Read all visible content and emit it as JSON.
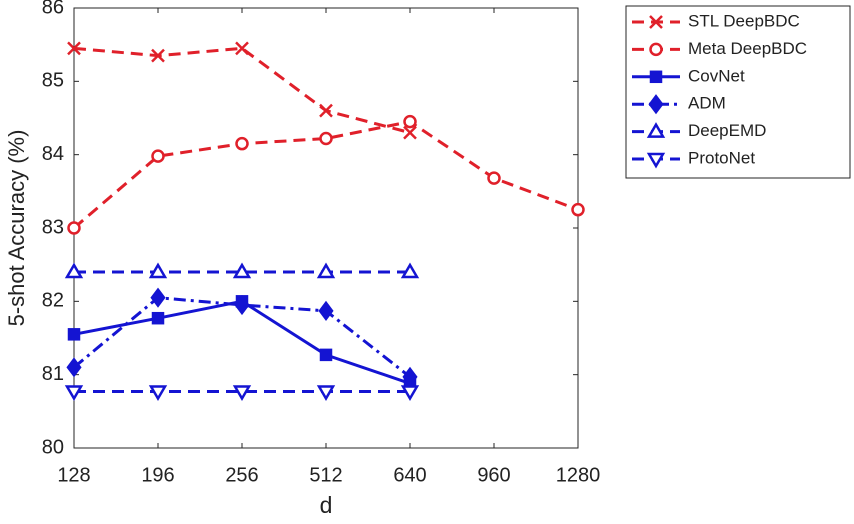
{
  "chart_data": {
    "type": "line",
    "xlabel": "d",
    "ylabel": "5-shot Accuracy (%)",
    "categories": [
      "128",
      "196",
      "256",
      "512",
      "640",
      "960",
      "1280"
    ],
    "ylim": [
      80,
      86
    ],
    "yticks": [
      80,
      81,
      82,
      83,
      84,
      85,
      86
    ],
    "legend": "outside-right",
    "series": [
      {
        "name": "STL DeepBDC",
        "color": "#e0202a",
        "line_style": "dashed",
        "marker": "x",
        "values": [
          85.45,
          85.35,
          85.45,
          84.6,
          84.3,
          null,
          null
        ]
      },
      {
        "name": "Meta DeepBDC",
        "color": "#e0202a",
        "line_style": "dashed",
        "marker": "circle",
        "values": [
          83.0,
          83.98,
          84.15,
          84.22,
          84.45,
          83.68,
          83.25
        ]
      },
      {
        "name": "CovNet",
        "color": "#1414d2",
        "line_style": "solid",
        "marker": "square",
        "values": [
          81.55,
          81.77,
          82.0,
          81.27,
          80.88,
          null,
          null
        ]
      },
      {
        "name": "ADM",
        "color": "#1414d2",
        "line_style": "dash-dot",
        "marker": "diamond",
        "values": [
          81.1,
          82.05,
          81.95,
          81.87,
          80.97,
          null,
          null
        ]
      },
      {
        "name": "DeepEMD",
        "color": "#1414d2",
        "line_style": "dashed",
        "marker": "triangle-up",
        "values": [
          82.4,
          82.4,
          82.4,
          82.4,
          82.4,
          null,
          null
        ]
      },
      {
        "name": "ProtoNet",
        "color": "#1414d2",
        "line_style": "dashed",
        "marker": "triangle-down",
        "values": [
          80.77,
          80.77,
          80.77,
          80.77,
          80.77,
          null,
          null
        ]
      }
    ]
  }
}
